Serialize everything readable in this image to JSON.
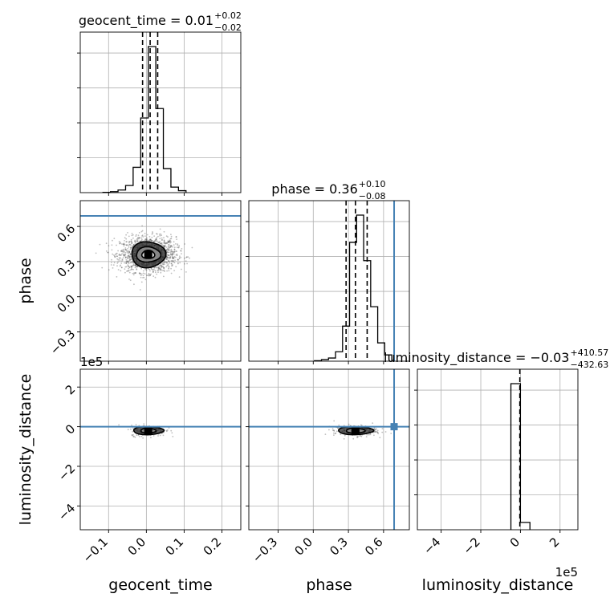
{
  "chart_data": {
    "type": "corner",
    "parameters": [
      "geocent_time",
      "phase",
      "luminosity_distance"
    ],
    "truths": {
      "phase": 0.69,
      "luminosity_distance": 0
    },
    "colors": {
      "truth": "#4682b4",
      "hist": "#000000",
      "grid": "#b0b0b0",
      "samples": "#444444"
    },
    "titles": [
      {
        "param": "geocent_time",
        "main": "geocent_time = 0.01",
        "upper": "+0.02",
        "lower": "−0.02"
      },
      {
        "param": "phase",
        "main": "phase = 0.36",
        "upper": "+0.10",
        "lower": "−0.08"
      },
      {
        "param": "luminosity_distance",
        "main": "luminosity_distance = −0.03",
        "upper": "+410.57",
        "lower": "−432.63"
      }
    ],
    "axis_labels": {
      "geocent_time": "geocent_time",
      "phase": "phase",
      "luminosity_distance": "luminosity_distance"
    },
    "offset_labels": {
      "luminosity_distance_y": "1e5",
      "luminosity_distance_x": "1e5"
    },
    "ranges": {
      "geocent_time": [
        -0.175,
        0.25
      ],
      "phase": [
        -0.55,
        0.82
      ],
      "luminosity_distance": [
        -5.2,
        2.9
      ]
    },
    "ticks": {
      "geocent_time": {
        "values": [
          -0.1,
          0.0,
          0.1,
          0.2
        ],
        "labels": [
          "−0.1",
          "0.0",
          "0.1",
          "0.2"
        ]
      },
      "phase": {
        "values": [
          -0.3,
          0.0,
          0.3,
          0.6
        ],
        "labels": [
          "−0.3",
          "0.0",
          "0.3",
          "0.6"
        ]
      },
      "luminosity_distance": {
        "values": [
          -4,
          -2,
          0,
          2
        ],
        "labels": [
          "−4",
          "−2",
          "0",
          "2"
        ]
      }
    },
    "quantiles": {
      "geocent_time": [
        -0.01,
        0.01,
        0.03
      ],
      "phase": [
        0.28,
        0.36,
        0.46
      ],
      "luminosity_distance": [
        -0.03
      ]
    },
    "histograms": {
      "geocent_time": {
        "edges": [
          -0.115,
          -0.095,
          -0.075,
          -0.055,
          -0.035,
          -0.015,
          0.005,
          0.025,
          0.045,
          0.065,
          0.085,
          0.105
        ],
        "counts": [
          1,
          3,
          8,
          22,
          78,
          230,
          450,
          259,
          74,
          17,
          6
        ]
      },
      "phase": {
        "edges": [
          0.01,
          0.07,
          0.13,
          0.19,
          0.25,
          0.31,
          0.37,
          0.43,
          0.49,
          0.55,
          0.61,
          0.67
        ],
        "counts": [
          1,
          3,
          6,
          18,
          67,
          227,
          279,
          192,
          104,
          35,
          12
        ]
      },
      "luminosity_distance": {
        "edges": [
          -0.48,
          0.0,
          0.48
        ],
        "counts": [
          1,
          0.05
        ]
      }
    },
    "contours": {
      "geocent_time_vs_phase": {
        "center": [
          0.005,
          0.36
        ],
        "sigma_x": [
          0.017,
          0.032,
          0.045
        ],
        "sigma_y": [
          0.035,
          0.065,
          0.11
        ]
      },
      "geocent_time_vs_luminosity_distance": {
        "center": [
          0.005,
          -0.2
        ],
        "sigma_x": [
          0.008,
          0.02,
          0.04
        ],
        "sigma_y": [
          0.05,
          0.12,
          0.2
        ]
      },
      "phase_vs_luminosity_distance": {
        "center": [
          0.36,
          -0.2
        ],
        "sigma_x": [
          0.03,
          0.08,
          0.15
        ],
        "sigma_y": [
          0.05,
          0.12,
          0.2
        ]
      }
    }
  }
}
